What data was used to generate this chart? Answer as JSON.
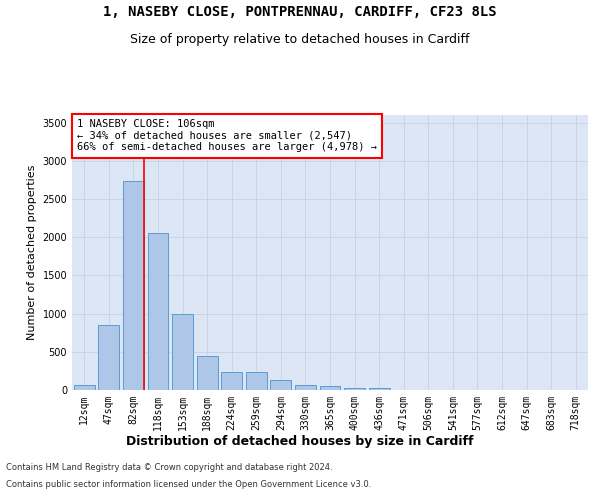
{
  "title_line1": "1, NASEBY CLOSE, PONTPRENNAU, CARDIFF, CF23 8LS",
  "title_line2": "Size of property relative to detached houses in Cardiff",
  "xlabel": "Distribution of detached houses by size in Cardiff",
  "ylabel": "Number of detached properties",
  "categories": [
    "12sqm",
    "47sqm",
    "82sqm",
    "118sqm",
    "153sqm",
    "188sqm",
    "224sqm",
    "259sqm",
    "294sqm",
    "330sqm",
    "365sqm",
    "400sqm",
    "436sqm",
    "471sqm",
    "506sqm",
    "541sqm",
    "577sqm",
    "612sqm",
    "647sqm",
    "683sqm",
    "718sqm"
  ],
  "values": [
    60,
    850,
    2730,
    2060,
    1000,
    450,
    230,
    230,
    135,
    60,
    50,
    30,
    20,
    0,
    0,
    0,
    0,
    0,
    0,
    0,
    0
  ],
  "bar_color": "#aec6e8",
  "bar_edge_color": "#5b9bd5",
  "vline_color": "red",
  "vline_x_index": 2,
  "annotation_text": "1 NASEBY CLOSE: 106sqm\n← 34% of detached houses are smaller (2,547)\n66% of semi-detached houses are larger (4,978) →",
  "annotation_box_color": "white",
  "annotation_box_edge_color": "red",
  "ylim": [
    0,
    3600
  ],
  "yticks": [
    0,
    500,
    1000,
    1500,
    2000,
    2500,
    3000,
    3500
  ],
  "grid_color": "#c8d4e8",
  "bg_color": "#dce6f5",
  "footer_line1": "Contains HM Land Registry data © Crown copyright and database right 2024.",
  "footer_line2": "Contains public sector information licensed under the Open Government Licence v3.0.",
  "title_fontsize": 10,
  "subtitle_fontsize": 9,
  "tick_fontsize": 7,
  "ylabel_fontsize": 8,
  "xlabel_fontsize": 9,
  "annotation_fontsize": 7.5,
  "footer_fontsize": 6
}
